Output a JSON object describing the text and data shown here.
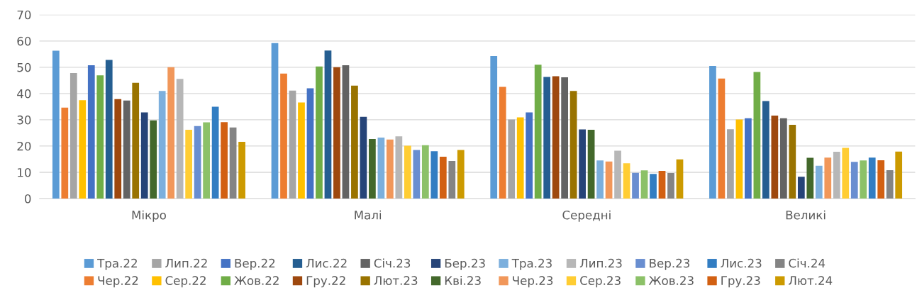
{
  "chart_data": {
    "type": "bar",
    "categories": [
      "Мікро",
      "Малі",
      "Середні",
      "Великі"
    ],
    "ylim": [
      0,
      70
    ],
    "yticks": [
      0,
      10,
      20,
      30,
      40,
      50,
      60,
      70
    ],
    "grid": "y",
    "legend": "bottom",
    "series": [
      {
        "name": "Тра.22",
        "color": "#5b9bd5",
        "values": [
          56.3,
          59.2,
          54.3,
          50.5
        ]
      },
      {
        "name": "Чер.22",
        "color": "#ed7d31",
        "values": [
          34.6,
          47.6,
          42.5,
          45.7
        ]
      },
      {
        "name": "Лип.22",
        "color": "#a5a5a5",
        "values": [
          47.8,
          41.1,
          30.1,
          26.4
        ]
      },
      {
        "name": "Сер.22",
        "color": "#ffc000",
        "values": [
          37.5,
          36.6,
          30.9,
          30.1
        ]
      },
      {
        "name": "Вер.22",
        "color": "#4472c4",
        "values": [
          50.8,
          42.0,
          32.8,
          30.6
        ]
      },
      {
        "name": "Жов.22",
        "color": "#70ad47",
        "values": [
          46.9,
          50.3,
          51.0,
          48.2
        ]
      },
      {
        "name": "Лис.22",
        "color": "#255e91",
        "values": [
          52.8,
          56.4,
          46.3,
          37.1
        ]
      },
      {
        "name": "Гру.22",
        "color": "#9e480e",
        "values": [
          37.9,
          50.0,
          46.6,
          31.6
        ]
      },
      {
        "name": "Січ.23",
        "color": "#636363",
        "values": [
          37.3,
          50.8,
          46.2,
          30.6
        ]
      },
      {
        "name": "Лют.23",
        "color": "#997300",
        "values": [
          44.1,
          43.0,
          41.0,
          28.1
        ]
      },
      {
        "name": "Бер.23",
        "color": "#264478",
        "values": [
          32.8,
          31.1,
          26.3,
          8.3
        ]
      },
      {
        "name": "Кві.23",
        "color": "#43682b",
        "values": [
          29.8,
          22.7,
          26.2,
          15.5
        ]
      },
      {
        "name": "Тра.23",
        "color": "#7cafdd",
        "values": [
          41.0,
          23.2,
          14.5,
          12.5
        ]
      },
      {
        "name": "Чер.23",
        "color": "#f1975a",
        "values": [
          50.0,
          22.5,
          14.1,
          15.6
        ]
      },
      {
        "name": "Лип.23",
        "color": "#b7b7b7",
        "values": [
          45.6,
          23.7,
          18.2,
          17.8
        ]
      },
      {
        "name": "Сер.23",
        "color": "#ffcd33",
        "values": [
          26.2,
          20.1,
          13.4,
          19.3
        ]
      },
      {
        "name": "Вер.23",
        "color": "#698ed0",
        "values": [
          27.6,
          18.5,
          9.8,
          14.0
        ]
      },
      {
        "name": "Жов.23",
        "color": "#8cc168",
        "values": [
          29.0,
          20.3,
          10.7,
          14.5
        ]
      },
      {
        "name": "Лис.23",
        "color": "#327dc2",
        "values": [
          35.0,
          18.0,
          9.4,
          15.6
        ]
      },
      {
        "name": "Гру.23",
        "color": "#d26012",
        "values": [
          29.1,
          15.9,
          10.5,
          14.6
        ]
      },
      {
        "name": "Січ.24",
        "color": "#848484",
        "values": [
          27.1,
          14.3,
          9.7,
          10.8
        ]
      },
      {
        "name": "Лют.24",
        "color": "#cc9a00",
        "values": [
          21.6,
          18.5,
          14.9,
          17.9
        ]
      }
    ]
  }
}
